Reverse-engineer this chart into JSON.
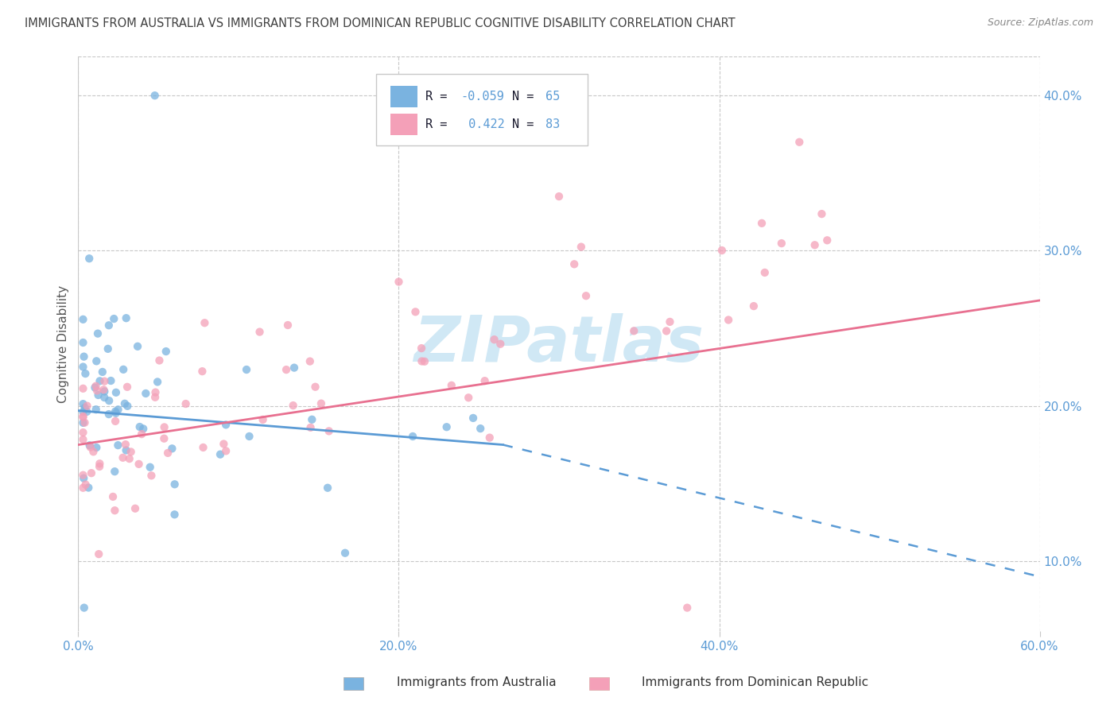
{
  "title": "IMMIGRANTS FROM AUSTRALIA VS IMMIGRANTS FROM DOMINICAN REPUBLIC COGNITIVE DISABILITY CORRELATION CHART",
  "source": "Source: ZipAtlas.com",
  "xlim": [
    0.0,
    0.6
  ],
  "ylim_low": 0.055,
  "ylim_high": 0.425,
  "r_australia": -0.059,
  "n_australia": 65,
  "r_dominican": 0.422,
  "n_dominican": 83,
  "color_australia": "#7ab3e0",
  "color_dominican": "#f4a0b8",
  "trendline_color_australia": "#5b9bd5",
  "trendline_color_dominican": "#e87090",
  "watermark_text": "ZIPatlas",
  "watermark_color": "#d0e8f5",
  "background_color": "#ffffff",
  "grid_color": "#c8c8c8",
  "title_color": "#404040",
  "axis_tick_color": "#5b9bd5",
  "legend_text_color": "#1a1a2e",
  "legend_val_color": "#5b9bd5",
  "ylabel_text": "Cognitive Disability",
  "xtick_labels": [
    "0.0%",
    "20.0%",
    "40.0%",
    "60.0%"
  ],
  "xtick_vals": [
    0.0,
    0.2,
    0.4,
    0.6
  ],
  "ytick_vals": [
    0.1,
    0.2,
    0.3,
    0.4
  ],
  "ytick_labels": [
    "10.0%",
    "20.0%",
    "30.0%",
    "40.0%"
  ],
  "legend_label_aus": "Immigrants from Australia",
  "legend_label_dom": "Immigrants from Dominican Republic",
  "aus_trendline_x0": 0.0,
  "aus_trendline_y0": 0.197,
  "aus_trendline_x1": 0.265,
  "aus_trendline_y1": 0.175,
  "aus_trendline_dash_x1": 0.6,
  "aus_trendline_dash_y1": 0.09,
  "dom_trendline_x0": 0.0,
  "dom_trendline_y0": 0.175,
  "dom_trendline_x1": 0.6,
  "dom_trendline_y1": 0.268
}
